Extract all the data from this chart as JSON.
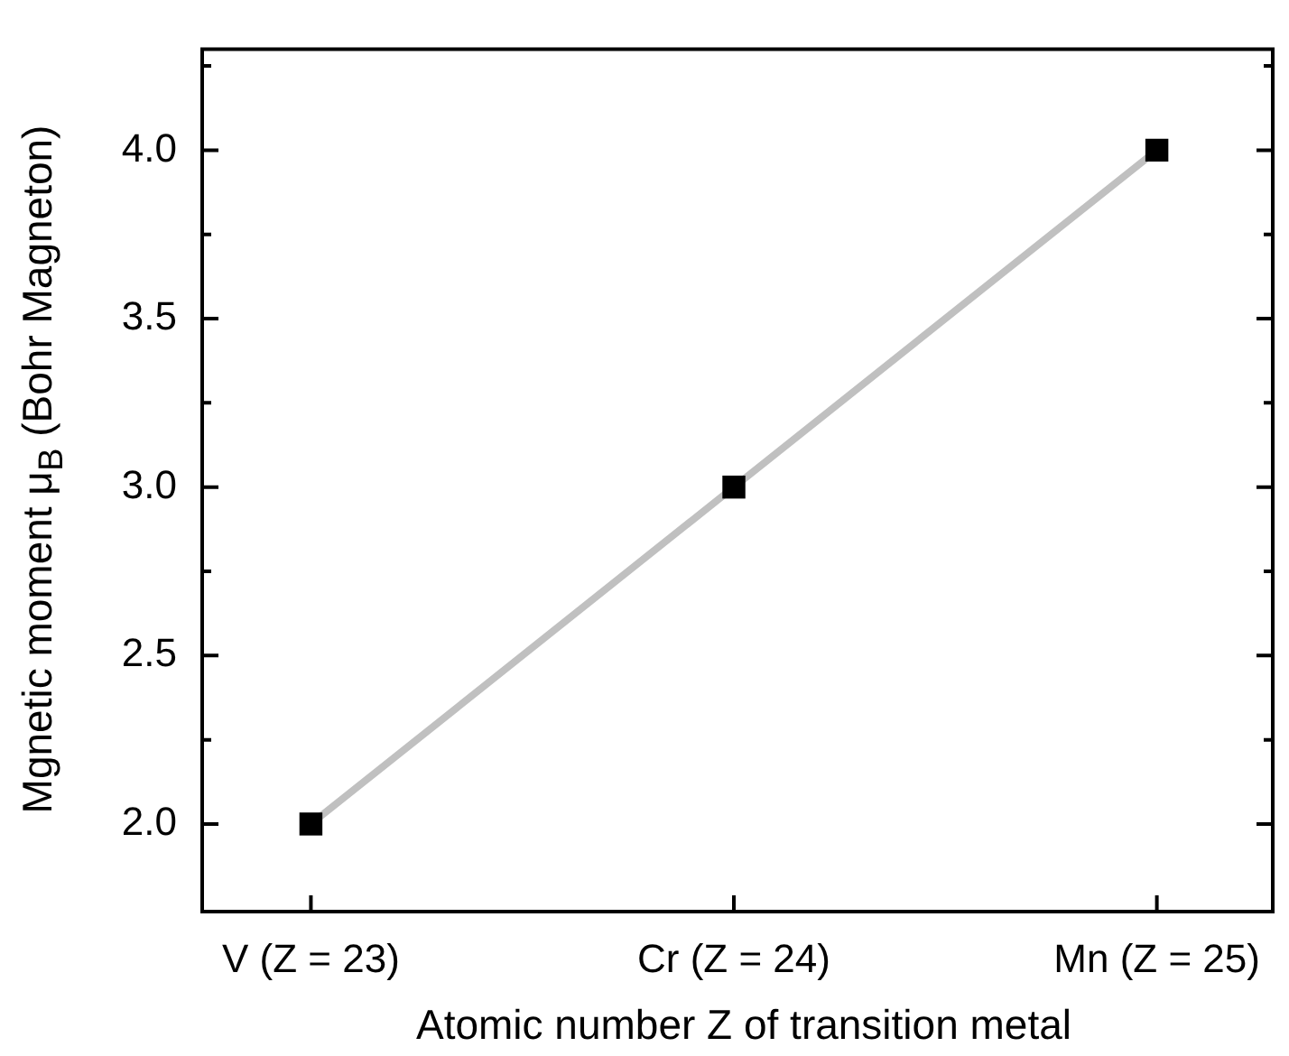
{
  "chart_data": {
    "type": "line",
    "xlabel": "Atomic number Z of transition metal",
    "ylabel": "Mgnetic moment μ$_{B}$ (Bohr Magneton)",
    "categories": [
      "V (Z = 23)",
      "Cr (Z = 24)",
      "Mn (Z = 25)"
    ],
    "series": [
      {
        "type": "line",
        "color": "#c0c0c0",
        "values": [
          2.0,
          3.0,
          4.0
        ],
        "marker": "none"
      },
      {
        "type": "scatter",
        "color": "#000000",
        "values": [
          2.0,
          3.0,
          4.0
        ],
        "marker": "square"
      }
    ],
    "ylim": [
      1.74,
      4.3
    ],
    "yticks": [
      {
        "value": 2,
        "label": "2.0"
      },
      {
        "value": 2.25,
        "label": null
      },
      {
        "value": 2.5,
        "label": "2.5"
      },
      {
        "value": 2.75,
        "label": null
      },
      {
        "value": 3,
        "label": "3.0"
      },
      {
        "value": 3.25,
        "label": null
      },
      {
        "value": 3.5,
        "label": "3.5"
      },
      {
        "value": 3.75,
        "label": null
      },
      {
        "value": 4,
        "label": "4.0"
      },
      {
        "value": 4.25,
        "label": null
      }
    ],
    "grid": false,
    "legend": false
  }
}
